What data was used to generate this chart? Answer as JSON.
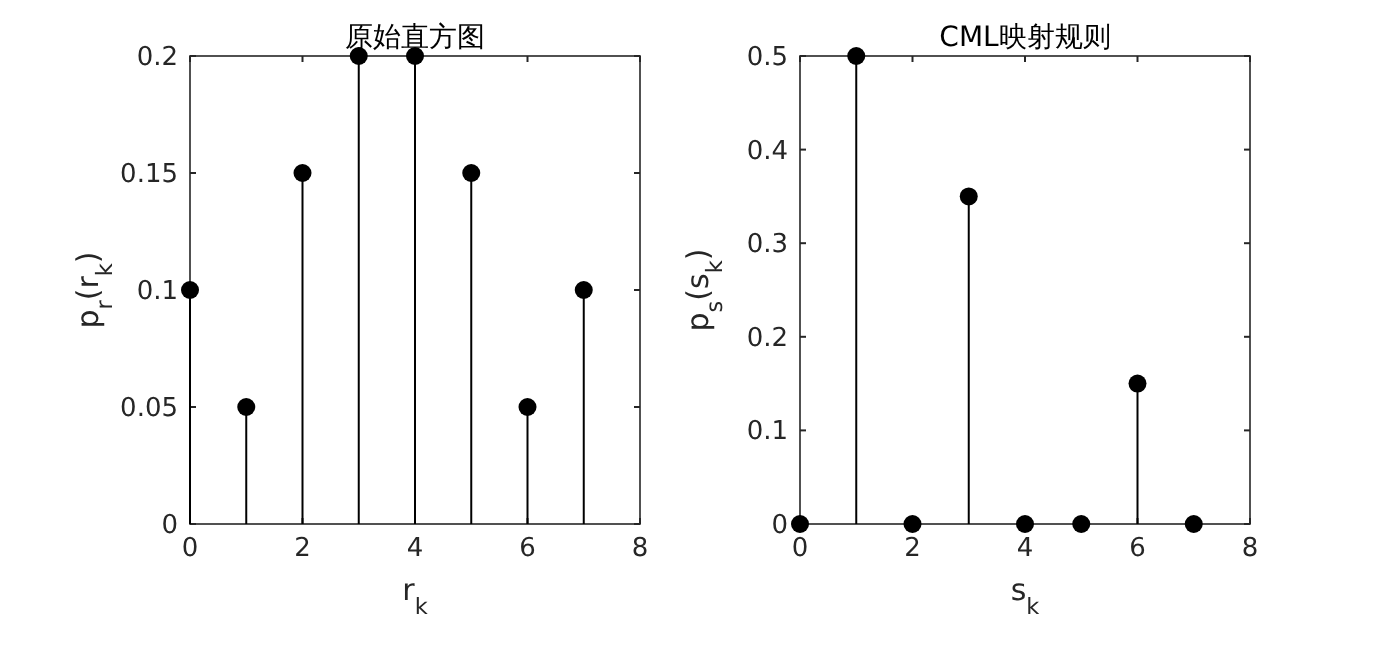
{
  "chart_data": [
    {
      "type": "lollipop",
      "title": "原始直方图",
      "xlabel": "r$_{k}$",
      "ylabel": "p$_{r}$(r$_{k}$)",
      "x": [
        0,
        1,
        2,
        3,
        4,
        5,
        6,
        7
      ],
      "series": [
        {
          "color": "#000000",
          "values": [
            0.1,
            0.05,
            0.15,
            0.2,
            0.2,
            0.15,
            0.05,
            0.1
          ]
        }
      ],
      "xlim": [
        0,
        8
      ],
      "xticks": [
        0,
        2,
        4,
        6,
        8
      ],
      "ylim": [
        0,
        0.2
      ],
      "yticks": [
        0,
        0.05,
        0.1,
        0.15,
        0.2
      ],
      "marker": "circle"
    },
    {
      "type": "lollipop",
      "title": "CML映射规则",
      "xlabel": "s$_{k}$",
      "ylabel": "p$_{s}$(s$_{k}$)",
      "x": [
        0,
        1,
        2,
        3,
        4,
        5,
        6,
        7
      ],
      "series": [
        {
          "color": "#000000",
          "values": [
            0,
            0.5,
            0,
            0.35,
            0,
            0,
            0.15,
            0
          ]
        }
      ],
      "xlim": [
        0,
        8
      ],
      "xticks": [
        0,
        2,
        4,
        6,
        8
      ],
      "ylim": [
        0,
        0.5
      ],
      "yticks": [
        0,
        0.1,
        0.2,
        0.3,
        0.4,
        0.5
      ],
      "marker": "circle"
    }
  ]
}
